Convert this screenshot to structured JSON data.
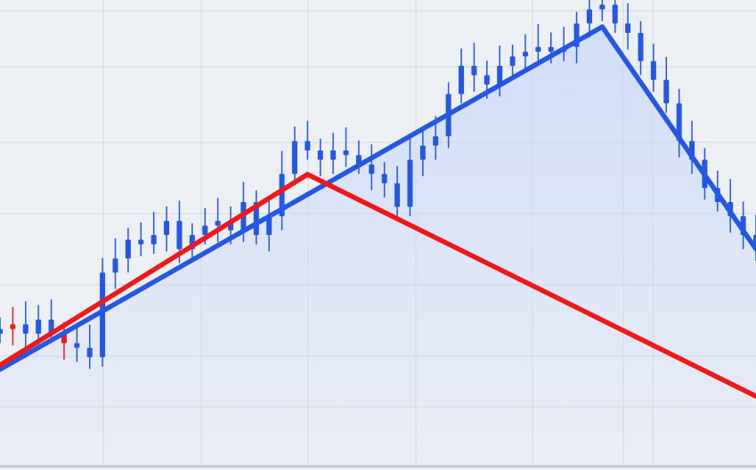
{
  "chart_data": {
    "type": "line",
    "title": "",
    "xlabel": "",
    "ylabel": "",
    "xlim": [
      0,
      59
    ],
    "ylim": [
      0,
      100
    ],
    "grid": true,
    "legend": "none",
    "colors": {
      "background": "#eceff4",
      "grid": "#d3d8e0",
      "blue": "#2457e6",
      "red": "#f01818",
      "fill": "#c9d8fb"
    },
    "candles": {
      "x": [
        0,
        1,
        2,
        3,
        4,
        5,
        6,
        7,
        8,
        9,
        10,
        11,
        12,
        13,
        14,
        15,
        16,
        17,
        18,
        19,
        20,
        21,
        22,
        23,
        24,
        25,
        26,
        27,
        28,
        29,
        30,
        31,
        32,
        33,
        34,
        35,
        36,
        37,
        38,
        39,
        40,
        41,
        42,
        43,
        44,
        45,
        46,
        47,
        48,
        49,
        50,
        51,
        52,
        53,
        54,
        55,
        56,
        57,
        58,
        59
      ],
      "close": [
        30,
        31,
        29,
        32,
        29,
        27,
        26,
        24,
        42,
        45,
        49,
        48,
        50,
        53,
        47,
        50,
        52,
        53,
        51,
        57,
        50,
        54,
        63,
        70,
        68,
        66,
        68,
        67,
        65,
        63,
        61,
        56,
        66,
        69,
        71,
        80,
        86,
        84,
        82,
        86,
        88,
        89,
        90,
        89,
        90,
        95,
        98,
        99,
        95,
        93,
        87,
        83,
        78,
        70,
        66,
        60,
        57,
        54,
        50,
        47
      ],
      "down_indices": [
        1,
        5
      ]
    },
    "series": [
      {
        "color": "blue",
        "x": [
          0,
          47,
          59
        ],
        "y": [
          21.4,
          94.3,
          47
        ]
      },
      {
        "color": "red",
        "x": [
          0,
          24,
          59
        ],
        "y": [
          22.3,
          62.9,
          15.7
        ]
      }
    ]
  }
}
